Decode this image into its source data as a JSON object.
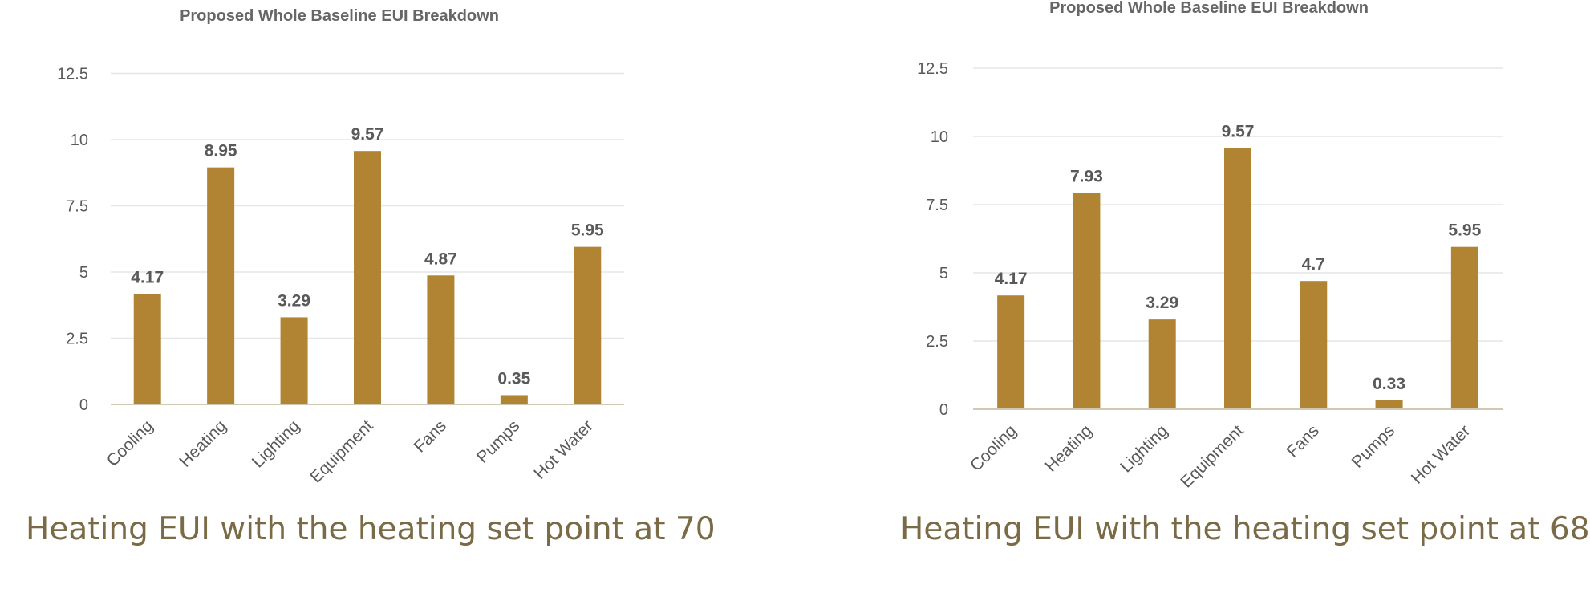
{
  "colors": {
    "bar": "#b08433",
    "grid": "#e6e6e6",
    "axis": "#d0c9b4",
    "caption": "#7a6a45"
  },
  "captions": [
    "Heating EUI with the heating set point at 70",
    "Heating EUI with the heating set point at 68"
  ],
  "chart_data": [
    {
      "type": "bar",
      "title": "Proposed Whole Baseline EUI Breakdown",
      "categories": [
        "Cooling",
        "Heating",
        "Lighting",
        "Equipment",
        "Fans",
        "Pumps",
        "Hot Water"
      ],
      "values": [
        4.17,
        8.95,
        3.29,
        9.57,
        4.87,
        0.35,
        5.95
      ],
      "data_labels": [
        "4.17",
        "8.95",
        "3.29",
        "9.57",
        "4.87",
        "0.35",
        "5.95"
      ],
      "yticks": [
        "0",
        "2.5",
        "5",
        "7.5",
        "10",
        "12.5"
      ],
      "ylim": [
        0,
        12.5
      ],
      "grid": true
    },
    {
      "type": "bar",
      "title": "Proposed Whole Baseline EUI Breakdown",
      "categories": [
        "Cooling",
        "Heating",
        "Lighting",
        "Equipment",
        "Fans",
        "Pumps",
        "Hot Water"
      ],
      "values": [
        4.17,
        7.93,
        3.29,
        9.57,
        4.7,
        0.33,
        5.95
      ],
      "data_labels": [
        "4.17",
        "7.93",
        "3.29",
        "9.57",
        "4.7",
        "0.33",
        "5.95"
      ],
      "yticks": [
        "0",
        "2.5",
        "5",
        "7.5",
        "10",
        "12.5"
      ],
      "ylim": [
        0,
        12.5
      ],
      "grid": true
    }
  ]
}
